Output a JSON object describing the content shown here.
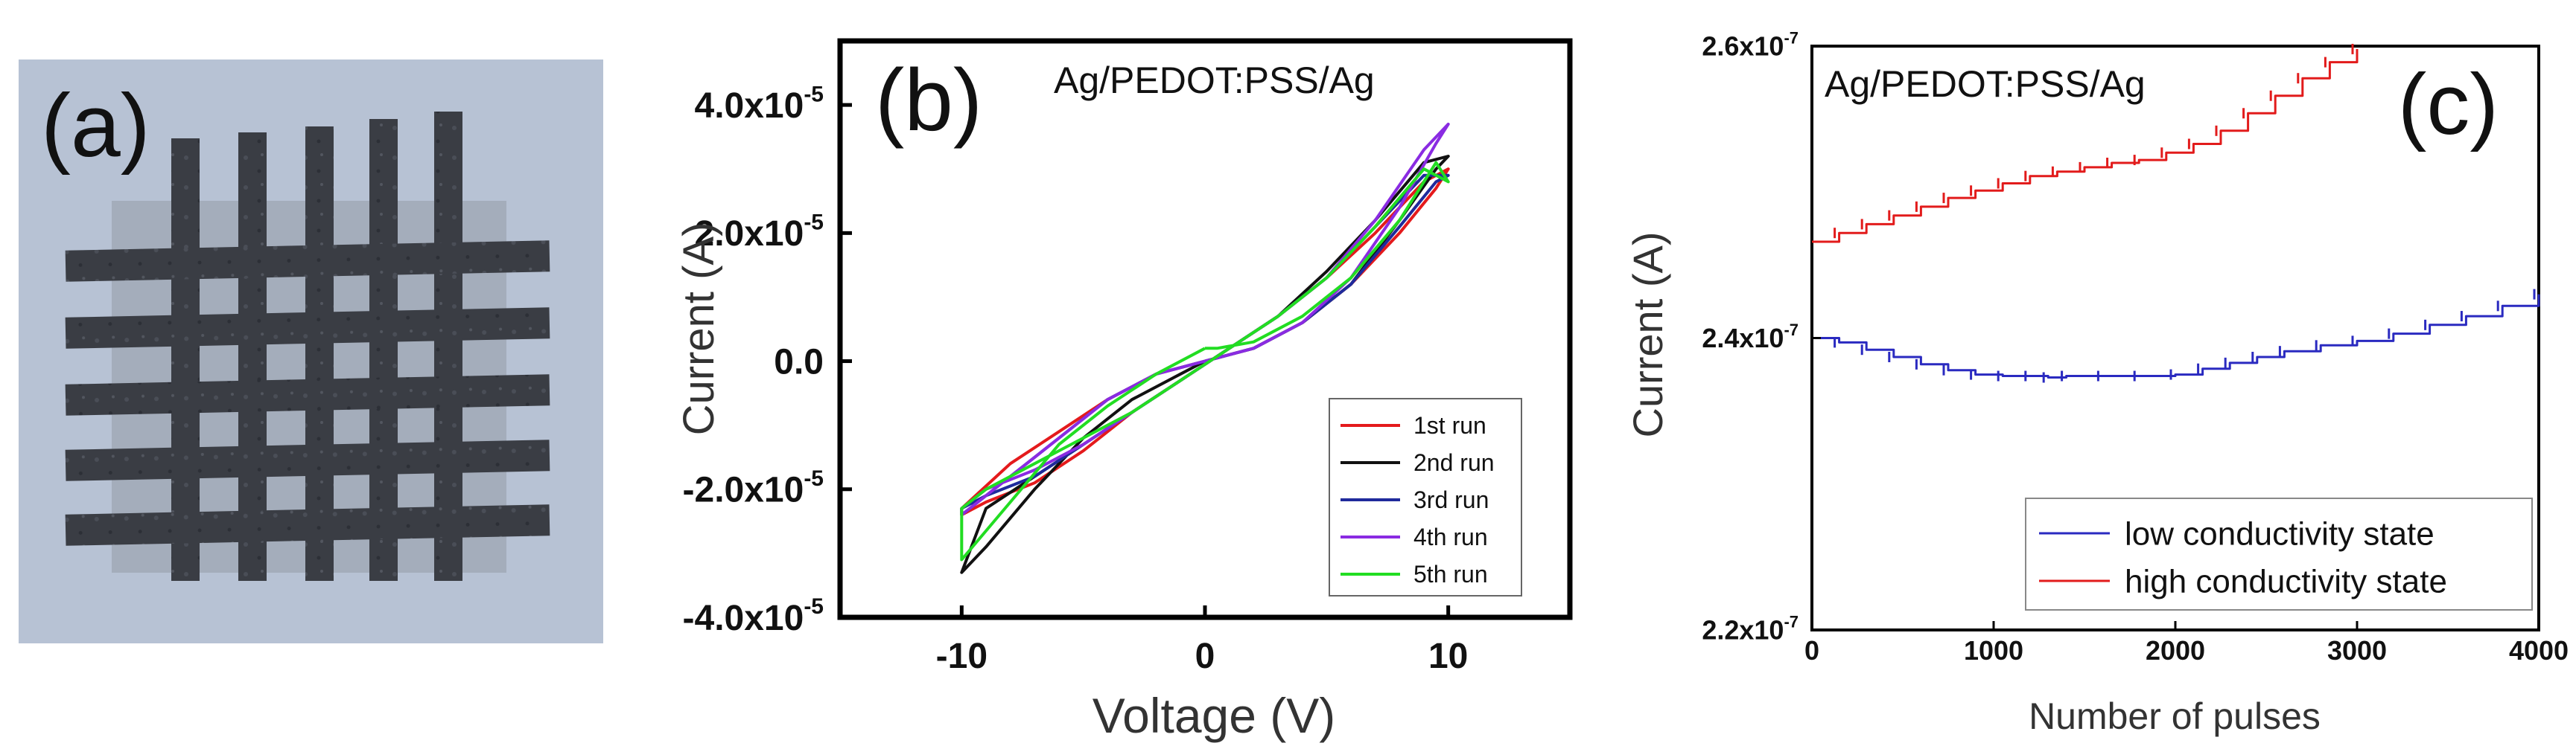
{
  "panels": {
    "a": {
      "label": "(a)",
      "image_description": "photo-crossbar-array"
    },
    "b": {
      "label": "(b)",
      "title": "Ag/PEDOT:PSS/Ag"
    },
    "c": {
      "label": "(c)",
      "title": "Ag/PEDOT:PSS/Ag"
    }
  },
  "chart_data": [
    {
      "id": "b",
      "type": "line",
      "title": "Ag/PEDOT:PSS/Ag",
      "xlabel": "Voltage (V)",
      "ylabel": "Current (A)",
      "xlim": [
        -15,
        15
      ],
      "ylim": [
        -4e-05,
        5e-05
      ],
      "xticks": [
        {
          "value": -10,
          "label": "-10"
        },
        {
          "value": 0,
          "label": "0"
        },
        {
          "value": 10,
          "label": "10"
        }
      ],
      "yticks": [
        {
          "value": -4e-05,
          "mant": "-4.0x10",
          "exp": "-5"
        },
        {
          "value": -2e-05,
          "mant": "-2.0x10",
          "exp": "-5"
        },
        {
          "value": 0,
          "mant": "0.0",
          "exp": ""
        },
        {
          "value": 2e-05,
          "mant": "2.0x10",
          "exp": "-5"
        },
        {
          "value": 4e-05,
          "mant": "4.0x10",
          "exp": "-5"
        }
      ],
      "legend_position": "bottom-right",
      "series": [
        {
          "name": "1st run",
          "color": "#e41a1c",
          "x": [
            0,
            2,
            4,
            6,
            8,
            9.5,
            10,
            9,
            7,
            5,
            3,
            1,
            -1,
            -3,
            -5,
            -7,
            -9,
            -10,
            -10,
            -8,
            -6,
            -4,
            -2,
            0
          ],
          "y": [
            0,
            2e-06,
            6e-06,
            1.2e-05,
            2e-05,
            2.7e-05,
            3e-05,
            2.8e-05,
            2e-05,
            1.3e-05,
            7e-06,
            2e-06,
            -3e-06,
            -8e-06,
            -1.4e-05,
            -1.9e-05,
            -2.2e-05,
            -2.4e-05,
            -2.3e-05,
            -1.6e-05,
            -1.1e-05,
            -6e-06,
            -2e-06,
            0
          ]
        },
        {
          "name": "2nd run",
          "color": "#111111",
          "x": [
            0,
            2,
            4,
            6,
            8,
            9.5,
            10,
            9,
            7,
            5,
            3,
            1,
            -1,
            -3,
            -5,
            -7,
            -9,
            -10,
            -9,
            -7,
            -5,
            -3,
            -1,
            0
          ],
          "y": [
            0,
            2e-06,
            6e-06,
            1.2e-05,
            2.2e-05,
            3e-05,
            3.2e-05,
            3.1e-05,
            2.2e-05,
            1.4e-05,
            7e-06,
            2e-06,
            -3e-06,
            -8e-06,
            -1.3e-05,
            -1.8e-05,
            -2.3e-05,
            -3.3e-05,
            -2.9e-05,
            -2e-05,
            -1.2e-05,
            -6e-06,
            -2e-06,
            0
          ]
        },
        {
          "name": "3rd run",
          "color": "#1f2a9c",
          "x": [
            0,
            2,
            4,
            6,
            8,
            9.5,
            10,
            9,
            7,
            5,
            3,
            1,
            -1,
            -3,
            -5,
            -7,
            -9,
            -10,
            -10,
            -8,
            -6,
            -4,
            -2,
            0
          ],
          "y": [
            0,
            2e-06,
            6e-06,
            1.2e-05,
            2.1e-05,
            2.8e-05,
            2.9e-05,
            2.9e-05,
            2.1e-05,
            1.3e-05,
            7e-06,
            2e-06,
            -3e-06,
            -8e-06,
            -1.3e-05,
            -1.8e-05,
            -2.1e-05,
            -2.3e-05,
            -2.4e-05,
            -1.8e-05,
            -1.2e-05,
            -6e-06,
            -2e-06,
            0
          ]
        },
        {
          "name": "4th run",
          "color": "#8a2be2",
          "x": [
            0,
            2,
            4,
            6,
            8,
            9.5,
            10,
            9,
            7,
            5,
            3,
            1,
            -1,
            -3,
            -5,
            -7,
            -9,
            -10,
            -10,
            -8,
            -6,
            -4,
            -2,
            0
          ],
          "y": [
            0,
            2e-06,
            6e-06,
            1.3e-05,
            2.4e-05,
            3.4e-05,
            3.7e-05,
            3.3e-05,
            2.2e-05,
            1.3e-05,
            7e-06,
            2e-06,
            -3e-06,
            -8e-06,
            -1.3e-05,
            -1.7e-05,
            -2e-05,
            -2.3e-05,
            -2.4e-05,
            -1.8e-05,
            -1.2e-05,
            -6e-06,
            -2e-06,
            0
          ]
        },
        {
          "name": "5th run",
          "color": "#22dd22",
          "x": [
            0,
            0.5,
            2,
            4,
            6,
            8,
            9.5,
            10,
            9,
            7,
            5,
            3,
            1,
            -1,
            -3,
            -5,
            -7,
            -9,
            -10,
            -10,
            -8,
            -6,
            -4,
            -2,
            0
          ],
          "y": [
            2e-06,
            2e-06,
            3e-06,
            7e-06,
            1.3e-05,
            2.2e-05,
            3.1e-05,
            2.8e-05,
            3e-05,
            2.1e-05,
            1.3e-05,
            7e-06,
            2e-06,
            -3e-06,
            -8e-06,
            -1.2e-05,
            -1.6e-05,
            -2e-05,
            -2.3e-05,
            -3.1e-05,
            -2.2e-05,
            -1.3e-05,
            -7e-06,
            -2e-06,
            2e-06
          ]
        }
      ]
    },
    {
      "id": "c",
      "type": "line",
      "title": "Ag/PEDOT:PSS/Ag",
      "xlabel": "Number of pulses",
      "ylabel": "Current (A)",
      "xlim": [
        0,
        4000
      ],
      "ylim": [
        2.2e-07,
        2.6e-07
      ],
      "xticks": [
        {
          "value": 0,
          "label": "0"
        },
        {
          "value": 1000,
          "label": "1000"
        },
        {
          "value": 2000,
          "label": "2000"
        },
        {
          "value": 3000,
          "label": "3000"
        },
        {
          "value": 4000,
          "label": "4000"
        }
      ],
      "yticks": [
        {
          "value": 2.2e-07,
          "mant": "2.2x10",
          "exp": "-7"
        },
        {
          "value": 2.4e-07,
          "mant": "2.4x10",
          "exp": "-7"
        },
        {
          "value": 2.6e-07,
          "mant": "2.6x10",
          "exp": "-7"
        }
      ],
      "legend_position": "bottom-right",
      "series": [
        {
          "name": "low conductivity state",
          "color": "#2a2ac0",
          "x": [
            0,
            150,
            300,
            450,
            600,
            750,
            900,
            1050,
            1200,
            1300,
            1400,
            1600,
            1800,
            2000,
            2150,
            2300,
            2450,
            2600,
            2800,
            3000,
            3200,
            3400,
            3600,
            3800,
            4000
          ],
          "y": [
            2.4e-07,
            2.397e-07,
            2.392e-07,
            2.387e-07,
            2.382e-07,
            2.378e-07,
            2.375e-07,
            2.374e-07,
            2.374e-07,
            2.373e-07,
            2.374e-07,
            2.374e-07,
            2.374e-07,
            2.375e-07,
            2.379e-07,
            2.383e-07,
            2.387e-07,
            2.391e-07,
            2.395e-07,
            2.398e-07,
            2.403e-07,
            2.409e-07,
            2.415e-07,
            2.422e-07,
            2.43e-07
          ]
        },
        {
          "name": "high conductivity state",
          "color": "#e21b1b",
          "x": [
            0,
            150,
            300,
            450,
            600,
            750,
            900,
            1050,
            1200,
            1350,
            1500,
            1650,
            1800,
            1950,
            2100,
            2250,
            2400,
            2550,
            2700,
            2850,
            3000
          ],
          "y": [
            2.466e-07,
            2.472e-07,
            2.478e-07,
            2.484e-07,
            2.49e-07,
            2.496e-07,
            2.501e-07,
            2.506e-07,
            2.511e-07,
            2.514e-07,
            2.517e-07,
            2.52e-07,
            2.522e-07,
            2.527e-07,
            2.533e-07,
            2.542e-07,
            2.554e-07,
            2.566e-07,
            2.578e-07,
            2.589e-07,
            2.598e-07
          ]
        }
      ]
    }
  ]
}
